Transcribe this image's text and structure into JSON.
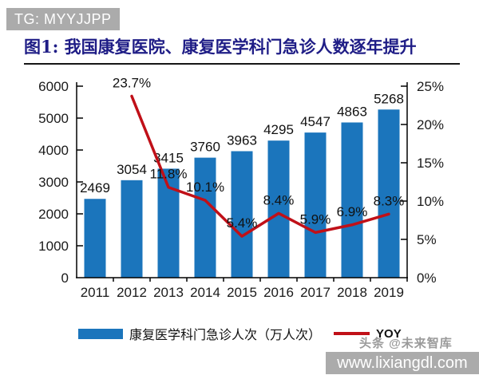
{
  "badge": {
    "text": "TG: MYYJJPP"
  },
  "figure": {
    "title": "图1: 我国康复医院、康复医学科门急诊人数逐年提升"
  },
  "colors": {
    "bar_blue": "#1b75bc",
    "line_red": "#c01018",
    "title_navy": "#1f1d86",
    "watermark_gray": "#ababab"
  },
  "chart_data": {
    "type": "bar",
    "subtype": "bar+line combo, dual axis",
    "categories": [
      "2011",
      "2012",
      "2013",
      "2014",
      "2015",
      "2016",
      "2017",
      "2018",
      "2019"
    ],
    "series": [
      {
        "name": "康复医学科门急诊人次（万人次）",
        "type": "bar",
        "axis": "left",
        "color": "#1b75bc",
        "values": [
          2469,
          3054,
          3415,
          3760,
          3963,
          4295,
          4547,
          4863,
          5268
        ]
      },
      {
        "name": "YOY",
        "type": "line",
        "axis": "right",
        "color": "#c01018",
        "values": [
          null,
          23.7,
          11.8,
          10.1,
          5.4,
          8.4,
          5.9,
          6.9,
          8.3
        ]
      }
    ],
    "left_axis": {
      "min": 0,
      "max": 6000,
      "step": 1000,
      "suffix": ""
    },
    "right_axis": {
      "min": 0,
      "max": 25,
      "step": 5,
      "suffix": "%"
    },
    "title": "图1: 我国康复医院、康复医学科门急诊人数逐年提升",
    "xlabel": "",
    "ylabel": "",
    "grid": false,
    "legend_position": "bottom",
    "data_labels": true
  },
  "watermarks": {
    "toutiao": "头条 @未来智库",
    "site": "www.lixiangdl.com"
  }
}
